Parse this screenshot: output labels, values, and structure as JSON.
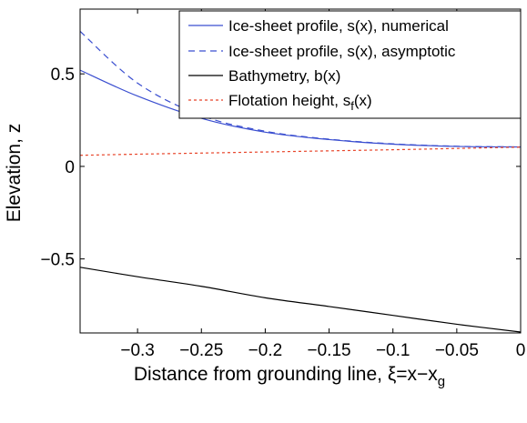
{
  "chart_data": {
    "type": "line",
    "xlabel": "Distance from grounding line, ξ=x−x",
    "xlabel_subscript": "g",
    "ylabel": "Elevation, z",
    "xlim": [
      -0.345,
      0
    ],
    "ylim": [
      -0.9,
      0.85
    ],
    "grid": false,
    "legend_position": "top-right",
    "x_ticks": [
      -0.3,
      -0.25,
      -0.2,
      -0.15,
      -0.1,
      -0.05,
      0
    ],
    "x_tick_labels": [
      "−0.3",
      "−0.25",
      "−0.2",
      "−0.15",
      "−0.1",
      "−0.05",
      "0"
    ],
    "y_ticks": [
      0.5,
      0,
      -0.5
    ],
    "y_tick_labels": [
      "0.5",
      "0",
      "−0.5"
    ],
    "x": [
      -0.345,
      -0.3,
      -0.25,
      -0.2,
      -0.15,
      -0.1,
      -0.05,
      0
    ],
    "series": [
      {
        "name": "Ice-sheet profile, s(x), numerical",
        "legend_label": "Ice-sheet profile, s(x), numerical",
        "color": "#3b4fd0",
        "dash": "solid",
        "values": [
          0.52,
          0.38,
          0.26,
          0.185,
          0.145,
          0.12,
          0.108,
          0.105
        ]
      },
      {
        "name": "Ice-sheet profile, s(x), asymptotic",
        "legend_label": "Ice-sheet profile, s(x), asymptotic",
        "color": "#3b4fd0",
        "dash": "dashed",
        "values": [
          0.73,
          0.45,
          0.275,
          0.19,
          0.147,
          0.122,
          0.109,
          0.105
        ]
      },
      {
        "name": "Bathymetry, b(x)",
        "legend_label": "Bathymetry, b(x)",
        "color": "#000000",
        "dash": "solid",
        "values": [
          -0.545,
          -0.596,
          -0.648,
          -0.71,
          -0.757,
          -0.805,
          -0.853,
          -0.895
        ]
      },
      {
        "name": "Flotation height, s_f(x)",
        "legend_label": "Flotation height, s",
        "legend_subscript": "f",
        "legend_suffix": "(x)",
        "color": "#e8452a",
        "dash": "dotted",
        "values": [
          0.06,
          0.066,
          0.072,
          0.078,
          0.084,
          0.09,
          0.097,
          0.104
        ]
      }
    ]
  }
}
